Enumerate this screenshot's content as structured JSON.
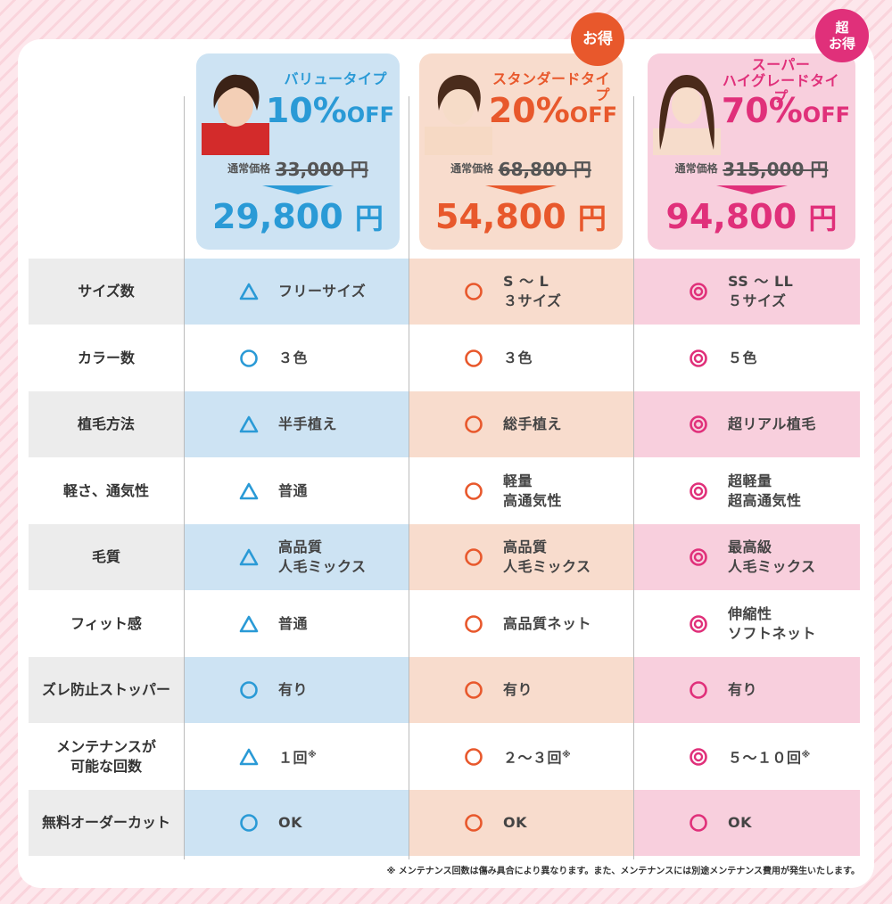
{
  "plans": [
    {
      "name": "バリュータイプ",
      "discount": "10%",
      "discount_unit": "OFF",
      "regular_label": "通常価格",
      "regular_price": "33,000 円",
      "price": "29,800",
      "price_unit": "円",
      "accent": "#2a9ad6",
      "badge": ""
    },
    {
      "name": "スタンダードタイプ",
      "discount": "20%",
      "discount_unit": "OFF",
      "regular_label": "通常価格",
      "regular_price": "68,800 円",
      "price": "54,800",
      "price_unit": "円",
      "accent": "#e8582c",
      "badge": "お得"
    },
    {
      "name_line1": "スーパー",
      "name_line2": "ハイグレードタイプ",
      "discount": "70%",
      "discount_unit": "OFF",
      "regular_label": "通常価格",
      "regular_price": "315,000 円",
      "price": "94,800",
      "price_unit": "円",
      "accent": "#e0307a",
      "badge_line1": "超",
      "badge_line2": "お得"
    }
  ],
  "rows": [
    {
      "label": "サイズ数",
      "cells": [
        {
          "symbol": "triangle",
          "text": "フリーサイズ"
        },
        {
          "symbol": "circle",
          "text": "S ～ L\n３サイズ"
        },
        {
          "symbol": "double-circle",
          "text": "SS ～ LL\n５サイズ"
        }
      ]
    },
    {
      "label": "カラー数",
      "cells": [
        {
          "symbol": "circle",
          "text": "３色"
        },
        {
          "symbol": "circle",
          "text": "３色"
        },
        {
          "symbol": "double-circle",
          "text": "５色"
        }
      ]
    },
    {
      "label": "植毛方法",
      "cells": [
        {
          "symbol": "triangle",
          "text": "半手植え"
        },
        {
          "symbol": "circle",
          "text": "総手植え"
        },
        {
          "symbol": "double-circle",
          "text": "超リアル植毛"
        }
      ]
    },
    {
      "label": "軽さ、通気性",
      "cells": [
        {
          "symbol": "triangle",
          "text": "普通"
        },
        {
          "symbol": "circle",
          "text": "軽量\n高通気性"
        },
        {
          "symbol": "double-circle",
          "text": "超軽量\n超高通気性"
        }
      ]
    },
    {
      "label": "毛質",
      "cells": [
        {
          "symbol": "triangle",
          "text": "高品質\n人毛ミックス"
        },
        {
          "symbol": "circle",
          "text": "高品質\n人毛ミックス"
        },
        {
          "symbol": "double-circle",
          "text": "最高級\n人毛ミックス"
        }
      ]
    },
    {
      "label": "フィット感",
      "cells": [
        {
          "symbol": "triangle",
          "text": "普通"
        },
        {
          "symbol": "circle",
          "text": "高品質ネット"
        },
        {
          "symbol": "double-circle",
          "text": "伸縮性\nソフトネット"
        }
      ]
    },
    {
      "label": "ズレ防止ストッパー",
      "cells": [
        {
          "symbol": "circle",
          "text": "有り"
        },
        {
          "symbol": "circle",
          "text": "有り"
        },
        {
          "symbol": "circle",
          "text": "有り"
        }
      ]
    },
    {
      "label": "メンテナンスが\n可能な回数",
      "cells": [
        {
          "symbol": "triangle",
          "text": "１回",
          "note": "※"
        },
        {
          "symbol": "circle",
          "text": "２～３回",
          "note": "※"
        },
        {
          "symbol": "double-circle",
          "text": "５～１０回",
          "note": "※"
        }
      ]
    },
    {
      "label": "無料オーダーカット",
      "cells": [
        {
          "symbol": "circle",
          "text": "OK"
        },
        {
          "symbol": "circle",
          "text": "OK"
        },
        {
          "symbol": "circle",
          "text": "OK"
        }
      ]
    }
  ],
  "footnote": "※ メンテナンス回数は傷み具合により異なります。また、メンテナンスには別途メンテナンス費用が発生いたします。"
}
